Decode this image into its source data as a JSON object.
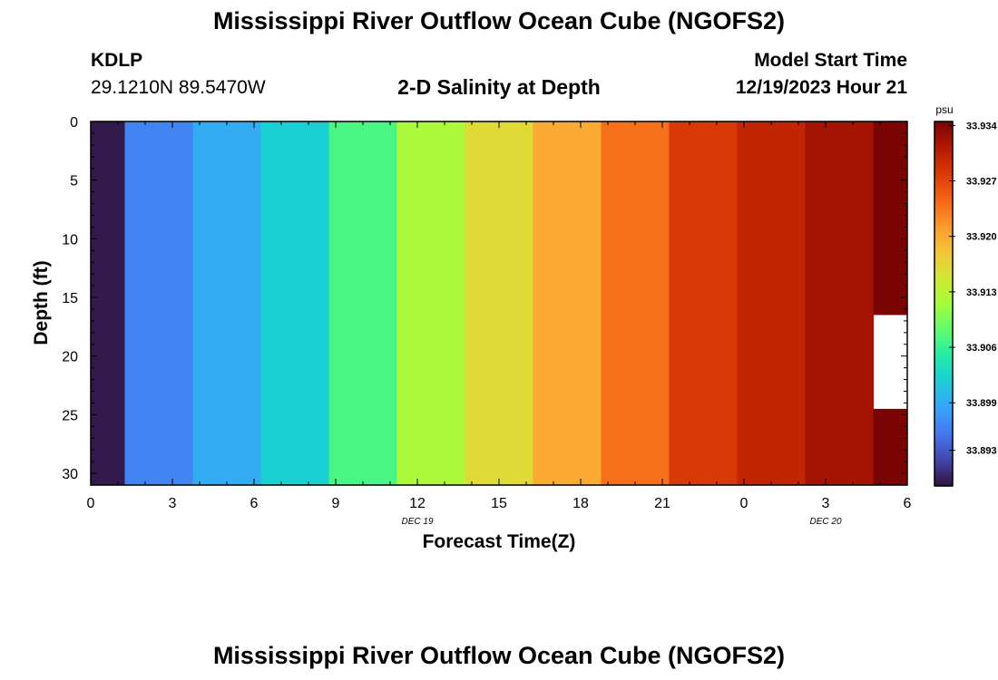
{
  "header": {
    "title": "Mississippi River Outflow Ocean Cube (NGOFS2)",
    "station": "KDLP",
    "coordinates": "29.1210N  89.5470W",
    "chart_title": "2-D Salinity at Depth",
    "start_label": "Model Start Time",
    "start_value": "12/19/2023 Hour 21"
  },
  "footer": {
    "title": "Mississippi River Outflow Ocean Cube (NGOFS2)"
  },
  "chart_data": {
    "type": "heatmap",
    "title": "2-D Salinity at Depth",
    "xlabel": "Forecast Time(Z)",
    "ylabel": "Depth (ft)",
    "x_tick_labels": [
      "0",
      "3",
      "6",
      "9",
      "12",
      "15",
      "18",
      "21",
      "0",
      "3",
      "6"
    ],
    "x_date_labels": [
      {
        "at_hour": 12,
        "label": "DEC 19"
      },
      {
        "at_hour": 27,
        "label": "DEC 20"
      }
    ],
    "y_tick_labels": [
      "0",
      "5",
      "10",
      "15",
      "20",
      "25",
      "30"
    ],
    "xlim_hours": [
      0,
      30
    ],
    "ylim": [
      0,
      31
    ],
    "y_inverted": true,
    "colorbar": {
      "unit": "psu",
      "range": [
        33.8885,
        33.9345
      ],
      "tick_labels": [
        "33.934",
        "33.927",
        "33.920",
        "33.913",
        "33.906",
        "33.899",
        "33.893"
      ],
      "tick_values": [
        33.934,
        33.927,
        33.92,
        33.913,
        33.906,
        33.899,
        33.893
      ],
      "colormap": "turbo"
    },
    "columns": [
      {
        "t0": 0,
        "t1": 1.25,
        "salinity": 33.889
      },
      {
        "t0": 1.25,
        "t1": 3.75,
        "salinity": 33.896
      },
      {
        "t0": 3.75,
        "t1": 6.25,
        "salinity": 33.899
      },
      {
        "t0": 6.25,
        "t1": 8.75,
        "salinity": 33.902
      },
      {
        "t0": 8.75,
        "t1": 11.25,
        "salinity": 33.907
      },
      {
        "t0": 11.25,
        "t1": 13.75,
        "salinity": 33.912
      },
      {
        "t0": 13.75,
        "t1": 16.25,
        "salinity": 33.916
      },
      {
        "t0": 16.25,
        "t1": 18.75,
        "salinity": 33.92
      },
      {
        "t0": 18.75,
        "t1": 21.25,
        "salinity": 33.924
      },
      {
        "t0": 21.25,
        "t1": 23.75,
        "salinity": 33.928
      },
      {
        "t0": 23.75,
        "t1": 26.25,
        "salinity": 33.93
      },
      {
        "t0": 26.25,
        "t1": 28.75,
        "salinity": 33.932
      },
      {
        "t0": 28.75,
        "t1": 30,
        "salinity": 33.9345,
        "missing_depth": [
          16.5,
          24.5
        ]
      }
    ]
  },
  "colors": {
    "turbo_stops": [
      [
        0.0,
        "#30123b"
      ],
      [
        0.07,
        "#4145ab"
      ],
      [
        0.14,
        "#4675ed"
      ],
      [
        0.21,
        "#39a2fc"
      ],
      [
        0.29,
        "#1bcfd4"
      ],
      [
        0.36,
        "#24eca6"
      ],
      [
        0.43,
        "#61fc6c"
      ],
      [
        0.5,
        "#a4fc3b"
      ],
      [
        0.57,
        "#d1e834"
      ],
      [
        0.64,
        "#f3c63a"
      ],
      [
        0.71,
        "#fe9b2d"
      ],
      [
        0.79,
        "#f36315"
      ],
      [
        0.86,
        "#d93806"
      ],
      [
        0.93,
        "#b11901"
      ],
      [
        1.0,
        "#7a0402"
      ]
    ]
  }
}
